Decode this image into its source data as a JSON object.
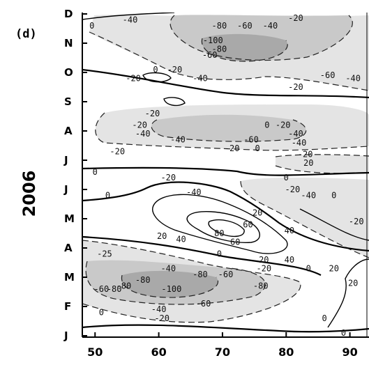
{
  "panel_label": "(d)",
  "ylabel": "2006",
  "chart_data": {
    "type": "heatmap",
    "title": "",
    "xlabel": "",
    "ylabel": "2006",
    "x_ticks": [
      "50",
      "60",
      "70",
      "80",
      "90"
    ],
    "y_ticks": [
      "J",
      "F",
      "M",
      "A",
      "M",
      "J",
      "J",
      "A",
      "S",
      "O",
      "N",
      "D"
    ],
    "xlim": [
      48,
      93
    ],
    "ylim": [
      0,
      11
    ],
    "fill": "grey shading for negative contours",
    "contour_labels": [
      {
        "value": "-40",
        "x": 55.5,
        "y": 10.8
      },
      {
        "value": "-80",
        "x": 69.5,
        "y": 10.6
      },
      {
        "value": "-60",
        "x": 73.5,
        "y": 10.6
      },
      {
        "value": "-40",
        "x": 77.5,
        "y": 10.6
      },
      {
        "value": "-20",
        "x": 81.5,
        "y": 10.9
      },
      {
        "value": "0",
        "x": 49.5,
        "y": 10.6
      },
      {
        "value": "-100",
        "x": 68.5,
        "y": 10.1
      },
      {
        "value": "-80",
        "x": 69.5,
        "y": 9.8
      },
      {
        "value": "-60",
        "x": 68.0,
        "y": 9.6
      },
      {
        "value": "0",
        "x": 59.5,
        "y": 9.1
      },
      {
        "value": "-20",
        "x": 62.5,
        "y": 9.1
      },
      {
        "value": "-40",
        "x": 66.5,
        "y": 8.8
      },
      {
        "value": "-20",
        "x": 56.0,
        "y": 8.8
      },
      {
        "value": "-60",
        "x": 86.5,
        "y": 8.9
      },
      {
        "value": "-40",
        "x": 90.5,
        "y": 8.8
      },
      {
        "value": "-20",
        "x": 81.5,
        "y": 8.5
      },
      {
        "value": "-20",
        "x": 59.0,
        "y": 7.6
      },
      {
        "value": "-20",
        "x": 57.0,
        "y": 7.2
      },
      {
        "value": "0",
        "x": 77.0,
        "y": 7.2
      },
      {
        "value": "-20",
        "x": 79.5,
        "y": 7.2
      },
      {
        "value": "-40",
        "x": 81.5,
        "y": 6.9
      },
      {
        "value": "-40",
        "x": 57.5,
        "y": 6.9
      },
      {
        "value": "-40",
        "x": 63.0,
        "y": 6.7
      },
      {
        "value": "-60",
        "x": 74.5,
        "y": 6.7
      },
      {
        "value": "-40",
        "x": 82.0,
        "y": 6.6
      },
      {
        "value": "-20",
        "x": 53.5,
        "y": 6.3
      },
      {
        "value": "-20",
        "x": 71.5,
        "y": 6.4
      },
      {
        "value": "0",
        "x": 75.5,
        "y": 6.4
      },
      {
        "value": "-20",
        "x": 83.0,
        "y": 6.2
      },
      {
        "value": "20",
        "x": 83.5,
        "y": 5.9
      },
      {
        "value": "0",
        "x": 50.0,
        "y": 5.6
      },
      {
        "value": "-20",
        "x": 61.5,
        "y": 5.4
      },
      {
        "value": "-40",
        "x": 65.5,
        "y": 4.9
      },
      {
        "value": "0",
        "x": 80.0,
        "y": 5.4
      },
      {
        "value": "-20",
        "x": 81.0,
        "y": 5.0
      },
      {
        "value": "-40",
        "x": 83.5,
        "y": 4.8
      },
      {
        "value": "0",
        "x": 87.5,
        "y": 4.8
      },
      {
        "value": "0",
        "x": 52.0,
        "y": 4.8
      },
      {
        "value": "20",
        "x": 75.5,
        "y": 4.2
      },
      {
        "value": "60",
        "x": 74.0,
        "y": 3.8
      },
      {
        "value": "80",
        "x": 69.5,
        "y": 3.5
      },
      {
        "value": "60",
        "x": 72.0,
        "y": 3.2
      },
      {
        "value": "40",
        "x": 80.5,
        "y": 3.6
      },
      {
        "value": "20",
        "x": 60.5,
        "y": 3.4
      },
      {
        "value": "40",
        "x": 63.5,
        "y": 3.3
      },
      {
        "value": "-20",
        "x": 91.0,
        "y": 3.9
      },
      {
        "value": "-25",
        "x": 51.5,
        "y": 2.8
      },
      {
        "value": "0",
        "x": 69.5,
        "y": 2.8
      },
      {
        "value": "20",
        "x": 76.5,
        "y": 2.6
      },
      {
        "value": "40",
        "x": 80.5,
        "y": 2.6
      },
      {
        "value": "-40",
        "x": 61.5,
        "y": 2.3
      },
      {
        "value": "-80",
        "x": 66.5,
        "y": 2.1
      },
      {
        "value": "-60",
        "x": 70.5,
        "y": 2.1
      },
      {
        "value": "-20",
        "x": 76.5,
        "y": 2.3
      },
      {
        "value": "-80",
        "x": 54.5,
        "y": 1.7
      },
      {
        "value": "-80",
        "x": 57.5,
        "y": 1.9
      },
      {
        "value": "-60",
        "x": 51.0,
        "y": 1.6
      },
      {
        "value": "-80",
        "x": 53.0,
        "y": 1.6
      },
      {
        "value": "-100",
        "x": 62.0,
        "y": 1.6
      },
      {
        "value": "-80",
        "x": 76.0,
        "y": 1.7
      },
      {
        "value": "0",
        "x": 83.5,
        "y": 2.3
      },
      {
        "value": "20",
        "x": 87.5,
        "y": 2.3
      },
      {
        "value": "-60",
        "x": 67.0,
        "y": 1.1
      },
      {
        "value": "-40",
        "x": 60.0,
        "y": 0.9
      },
      {
        "value": "-20",
        "x": 60.5,
        "y": 0.6
      },
      {
        "value": "0",
        "x": 51.0,
        "y": 0.8
      },
      {
        "value": "0",
        "x": 86.0,
        "y": 0.6
      },
      {
        "value": "20",
        "x": 90.5,
        "y": 1.8
      },
      {
        "value": "0",
        "x": 89.0,
        "y": 0.1
      }
    ]
  }
}
